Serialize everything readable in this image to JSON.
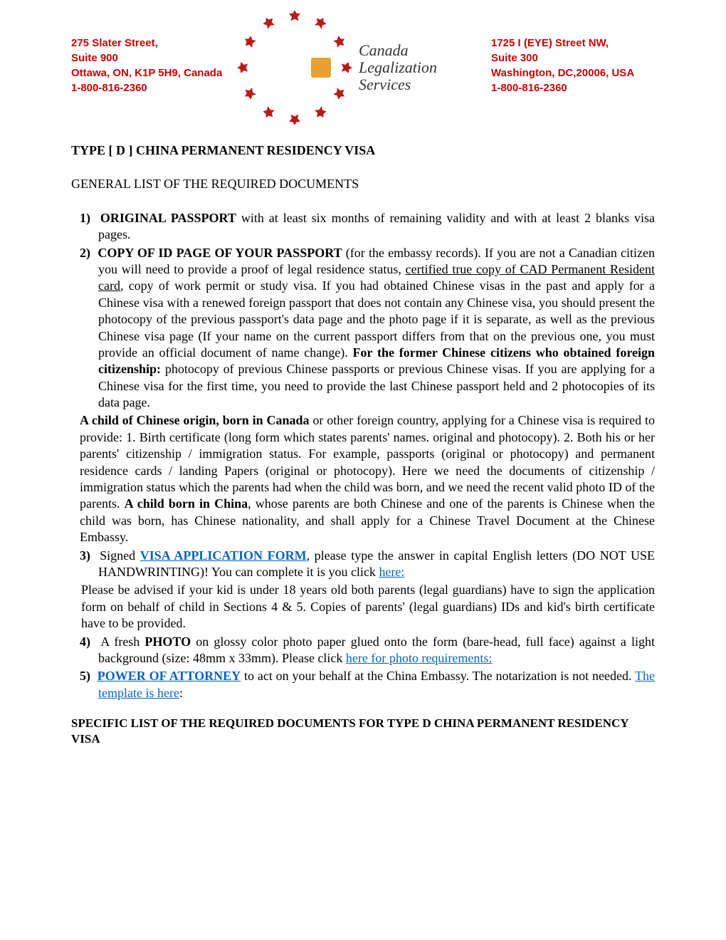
{
  "header": {
    "left_address": {
      "line1": "275 Slater Street,",
      "line2": "Suite 900",
      "line3": "Ottawa, ON, K1P 5H9, Canada",
      "line4": "1-800-816-2360"
    },
    "right_address": {
      "line1": "1725 I (EYE) Street NW,",
      "line2": "Suite 300",
      "line3": "Washington, DC,20006, USA",
      "line4": "1-800-816-2360"
    },
    "logo": {
      "text_line1": "Canada",
      "text_line2": "Legalization",
      "text_line3": "Services",
      "leaf_color": "#bb1a1a",
      "shield_color": "#e8a030"
    }
  },
  "title": "TYPE [ D ] CHINA PERMANENT RESIDENCY VISA",
  "general_heading": "GENERAL LIST OF THE REQUIRED DOCUMENTS",
  "items": {
    "item1_num": "1)",
    "item1_bold": "ORIGINAL PASSPORT",
    "item1_text": " with at least six months of remaining validity and with at least 2 blanks visa pages.",
    "item2_num": "2)",
    "item2_bold": "COPY OF ID PAGE OF YOUR PASSPORT",
    "item2_text_a": " (for the embassy records). If you are not a Canadian citizen you will need to provide a proof of legal residence status, ",
    "item2_underline": "certified true copy of CAD Permanent Resident card",
    "item2_text_b": ", copy of work permit or study visa. If you had obtained Chinese visas in the past and apply for a Chinese visa with a renewed foreign passport that does not contain any Chinese visa, you should present the photocopy of the previous passport's data page and the photo page if it is separate, as well as the previous Chinese visa page (If your name on the current passport differs from that on the previous one, you must provide an official document of name change). ",
    "item2_bold2": "For the former Chinese citizens who obtained foreign citizenship:",
    "item2_text_c": " photocopy of previous Chinese passports or previous Chinese visas. If you are applying for a Chinese visa for the first time, you need to provide the last Chinese passport held and 2 photocopies of its data page.",
    "child_bold1": "A child of Chinese origin, born in Canada",
    "child_text1": " or other foreign country, applying for a Chinese visa is required to provide: 1. Birth certificate (long form which states parents' names. original and photocopy). 2. Both his or her parents' citizenship / immigration status. For example, passports (original or photocopy) and permanent residence cards / landing Papers (original or photocopy). Here we need the documents of citizenship / immigration status which the parents had when the child was born, and we need the recent valid photo ID of the parents. ",
    "child_bold2": "A child born in China",
    "child_text2": ", whose parents are both Chinese and one of the parents is Chinese when the child was born, has Chinese nationality, and shall apply for a Chinese Travel Document at the Chinese Embassy.",
    "item3_num": "3)",
    "item3_text_a": "Signed ",
    "item3_link": "VISA APPLICATION FORM",
    "item3_text_b": ", please type the answer in capital English letters (DO NOT USE HANDWRINTING)! You can complete it is you click ",
    "item3_link2": "here:",
    "item3_advice": "Please be advised if your kid is under 18 years old both parents (legal guardians) have to sign the application form on behalf of child in Sections 4 & 5. Copies of parents' (legal guardians) IDs and kid's birth certificate have to be provided.",
    "item4_num": "4)",
    "item4_text_a": "A fresh ",
    "item4_bold": "PHOTO",
    "item4_text_b": " on glossy color photo paper glued onto the form (bare-head, full face) against a light background (size: 48mm x 33mm). Please click ",
    "item4_link": "here for photo requirements:",
    "item5_num": "5)",
    "item5_link": "POWER OF ATTORNEY",
    "item5_text": " to act on your behalf at the China Embassy. The notarization is not needed.   ",
    "item5_link2": "The template is here",
    "item5_colon": ":"
  },
  "specific_heading": "SPECIFIC LIST OF THE REQUIRED DOCUMENTS FOR TYPE D CHINA PERMANENT RESIDENCY VISA",
  "colors": {
    "address_color": "#cc0000",
    "link_color": "#0563c1",
    "text_color": "#000000",
    "background": "#ffffff"
  }
}
